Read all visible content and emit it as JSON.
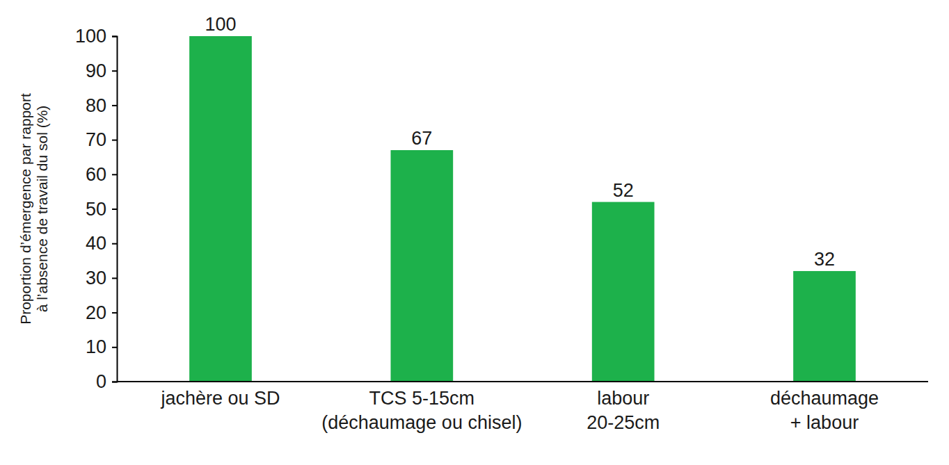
{
  "chart_data": {
    "type": "bar",
    "y_label": "Proportion d’émergence par rapport\nà l’absence de travail du sol (%)",
    "categories": [
      "jachère ou SD",
      "TCS 5-15cm\n(déchaumage ou chisel)",
      "labour\n20-25cm",
      "déchaumage\n+ labour"
    ],
    "values": [
      100,
      67,
      52,
      32
    ],
    "color": "#1db14b",
    "ylim": [
      0,
      100
    ],
    "yticks": [
      0,
      10,
      20,
      30,
      40,
      50,
      60,
      70,
      80,
      90,
      100
    ],
    "grid": false,
    "data_labels": true
  }
}
